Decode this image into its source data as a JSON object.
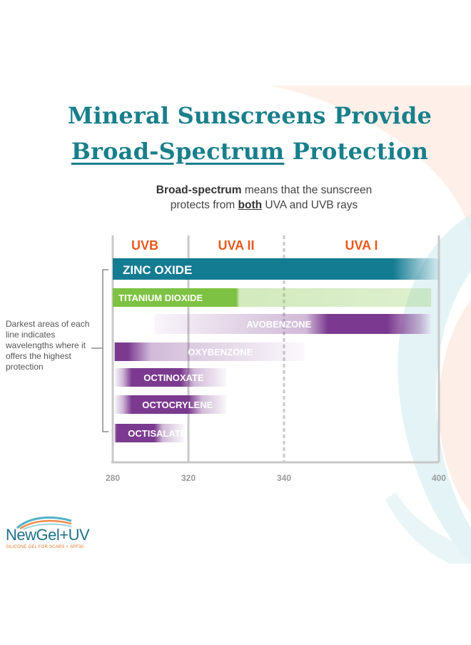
{
  "title": {
    "line1": "Mineral Sunscreens Provide",
    "line2_underlined": "Broad-Spectrum",
    "line2_rest": "Protection"
  },
  "subtitle": {
    "bold1": "Broad-spectrum",
    "text1": "means that the sunscreen",
    "text2_pre": "protects from",
    "bold2": "both",
    "text2_post": "UVA and UVB rays"
  },
  "annotation": "Darkest areas of each line indicates wavelengths where it offers the highest protection",
  "logo": {
    "name": "NewGel+UV",
    "tagline": "SILICONE GEL FOR SCARS + SPF30"
  },
  "chart_data": {
    "type": "bar",
    "orientation": "horizontal-range",
    "x": {
      "ticks": [
        280,
        320,
        340,
        400
      ],
      "range": [
        280,
        400
      ]
    },
    "bands": [
      {
        "label": "UVB",
        "from": 280,
        "to": 320
      },
      {
        "label": "UVA II",
        "from": 320,
        "to": 340
      },
      {
        "label": "UVA I",
        "from": 340,
        "to": 400
      }
    ],
    "band_color": "#e85a1e",
    "series": [
      {
        "name": "ZINC OXIDE",
        "from": 280,
        "to": 400,
        "peak_from": 280,
        "peak_to": 397,
        "color": "#137b92",
        "style": "solid"
      },
      {
        "name": "TITANIUM DIOXIDE",
        "from": 280,
        "to": 397,
        "peak_from": 280,
        "peak_to": 330,
        "color": "#7dc242",
        "style": "solid"
      },
      {
        "name": "AVOBENZONE",
        "from": 302,
        "to": 397,
        "peak_from": 357,
        "peak_to": 380,
        "color": "#7b3a8f",
        "style": "gradient"
      },
      {
        "name": "OXYBENZONE",
        "from": 281,
        "to": 348,
        "peak_from": 281,
        "peak_to": 288,
        "color": "#7b3a8f",
        "style": "gradient"
      },
      {
        "name": "OCTINOXATE",
        "from": 281,
        "to": 328,
        "peak_from": 290,
        "peak_to": 316,
        "color": "#7b3a8f",
        "style": "gradient"
      },
      {
        "name": "OCTOCRYLENE",
        "from": 281,
        "to": 328,
        "peak_from": 290,
        "peak_to": 320,
        "color": "#7b3a8f",
        "style": "gradient"
      },
      {
        "name": "OCTISALATE",
        "from": 281,
        "to": 318,
        "peak_from": 282,
        "peak_to": 302,
        "color": "#7b3a8f",
        "style": "gradient"
      }
    ]
  }
}
